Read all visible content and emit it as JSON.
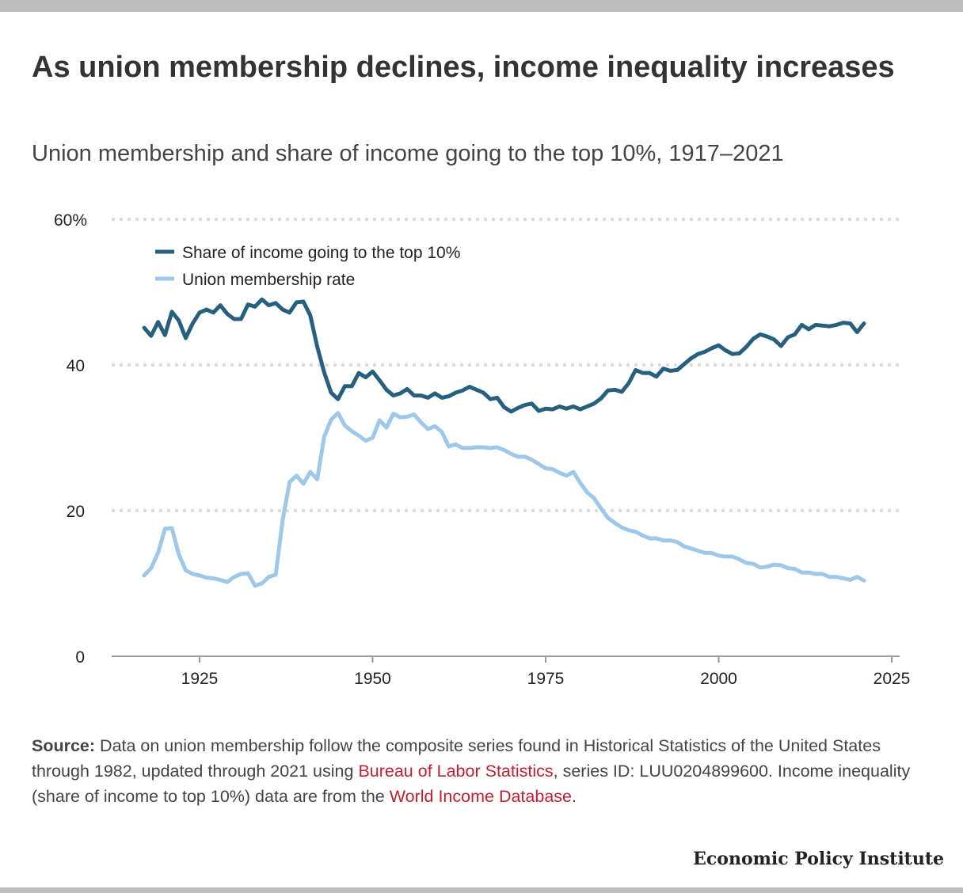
{
  "header": {
    "title": "As union membership declines, income inequality increases",
    "subtitle": "Union membership and share of income going to the top 10%, 1917–2021"
  },
  "colors": {
    "top10": "#27607f",
    "union": "#9ec8e9",
    "grid": "#dddddd",
    "link": "#c0202f"
  },
  "chart_data": {
    "type": "line",
    "title": "As union membership declines, income inequality increases",
    "subtitle": "Union membership and share of income going to the top 10%, 1917–2021",
    "xlabel": "",
    "ylabel": "",
    "xlim": [
      1912,
      2027
    ],
    "ylim": [
      0,
      60
    ],
    "xticks": [
      "1925",
      "1950",
      "1975",
      "2000",
      "2025"
    ],
    "yticks": [
      "0",
      "20",
      "40",
      "60%"
    ],
    "grid": "horizontal dotted",
    "legend": "top-left",
    "x_start": 1917,
    "series": [
      {
        "name": "Share of income going to the top 10%",
        "color": "#27607f",
        "values": [
          45.1,
          44.0,
          45.9,
          44.1,
          47.3,
          46.1,
          43.7,
          45.7,
          47.2,
          47.6,
          47.2,
          48.2,
          47.0,
          46.3,
          46.3,
          48.3,
          48.0,
          49.0,
          48.2,
          48.5,
          47.6,
          47.2,
          48.6,
          48.7,
          46.8,
          42.5,
          39.0,
          36.2,
          35.3,
          37.1,
          37.1,
          38.9,
          38.3,
          39.1,
          37.9,
          36.6,
          35.8,
          36.1,
          36.7,
          35.8,
          35.8,
          35.5,
          36.1,
          35.5,
          35.7,
          36.2,
          36.5,
          37.0,
          36.6,
          36.2,
          35.3,
          35.5,
          34.2,
          33.6,
          34.1,
          34.5,
          34.7,
          33.7,
          34.0,
          33.9,
          34.3,
          34.0,
          34.3,
          33.9,
          34.3,
          34.7,
          35.4,
          36.5,
          36.6,
          36.3,
          37.5,
          39.3,
          38.9,
          38.9,
          38.4,
          39.5,
          39.2,
          39.3,
          40.1,
          40.9,
          41.5,
          41.8,
          42.3,
          42.7,
          42.0,
          41.5,
          41.6,
          42.5,
          43.6,
          44.2,
          43.9,
          43.5,
          42.6,
          43.8,
          44.2,
          45.5,
          44.9,
          45.5,
          45.4,
          45.3,
          45.5,
          45.8,
          45.7,
          44.5,
          45.7
        ]
      },
      {
        "name": "Union membership rate",
        "color": "#9ec8e9",
        "values": [
          11.1,
          12.1,
          14.2,
          17.5,
          17.6,
          14.0,
          11.8,
          11.3,
          11.1,
          10.8,
          10.7,
          10.5,
          10.2,
          10.9,
          11.3,
          11.4,
          9.7,
          10.0,
          10.9,
          11.2,
          18.7,
          23.9,
          24.8,
          23.7,
          25.3,
          24.3,
          30.1,
          32.5,
          33.4,
          31.7,
          30.9,
          30.3,
          29.6,
          30.0,
          32.4,
          31.4,
          33.3,
          32.8,
          32.9,
          33.2,
          32.1,
          31.2,
          31.6,
          30.8,
          28.8,
          29.1,
          28.6,
          28.6,
          28.7,
          28.7,
          28.6,
          28.7,
          28.3,
          27.8,
          27.4,
          27.4,
          27.0,
          26.4,
          25.8,
          25.7,
          25.2,
          24.8,
          25.3,
          23.8,
          22.5,
          21.7,
          20.3,
          19.0,
          18.3,
          17.7,
          17.3,
          17.1,
          16.6,
          16.2,
          16.2,
          15.9,
          15.9,
          15.7,
          15.1,
          14.8,
          14.5,
          14.2,
          14.2,
          13.8,
          13.7,
          13.7,
          13.3,
          12.8,
          12.7,
          12.2,
          12.3,
          12.6,
          12.5,
          12.1,
          12.0,
          11.5,
          11.5,
          11.3,
          11.3,
          10.9,
          10.9,
          10.7,
          10.5,
          10.9,
          10.4
        ]
      }
    ]
  },
  "source": {
    "label": "Source:",
    "text1": " Data on union membership follow the composite series found in Historical Statistics of the United States through 1982, updated through 2021 using ",
    "link1": "Bureau of Labor Statistics",
    "text2": ", series ID: LUU0204899600. Income inequality (share of income to top 10%) data are from the ",
    "link2": "World Income Database",
    "text3": "."
  },
  "brand": "Economic Policy Institute"
}
